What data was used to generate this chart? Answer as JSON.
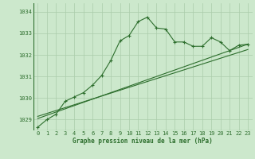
{
  "bg_color": "#cce8cc",
  "grid_color": "#aaccaa",
  "line_color": "#2d6e2d",
  "title": "Graphe pression niveau de la mer (hPa)",
  "xlim": [
    -0.5,
    23.5
  ],
  "ylim": [
    1028.5,
    1034.4
  ],
  "yticks": [
    1029,
    1030,
    1031,
    1032,
    1033,
    1034
  ],
  "xticks": [
    0,
    1,
    2,
    3,
    4,
    5,
    6,
    7,
    8,
    9,
    10,
    11,
    12,
    13,
    14,
    15,
    16,
    17,
    18,
    19,
    20,
    21,
    22,
    23
  ],
  "line1_x": [
    0,
    1,
    2,
    3,
    4,
    5,
    6,
    7,
    8,
    9,
    10,
    11,
    12,
    13,
    14,
    15,
    16,
    17,
    18,
    19,
    20,
    21,
    22,
    23
  ],
  "line1_y": [
    1028.65,
    1029.0,
    1029.25,
    1029.85,
    1030.05,
    1030.25,
    1030.6,
    1031.05,
    1031.75,
    1032.65,
    1032.9,
    1033.55,
    1033.75,
    1033.25,
    1033.2,
    1032.6,
    1032.6,
    1032.4,
    1032.4,
    1032.8,
    1032.6,
    1032.2,
    1032.45,
    1032.5
  ],
  "line2_x": [
    0,
    23
  ],
  "line2_y": [
    1029.05,
    1032.5
  ],
  "line3_x": [
    0,
    23
  ],
  "line3_y": [
    1029.15,
    1032.25
  ]
}
